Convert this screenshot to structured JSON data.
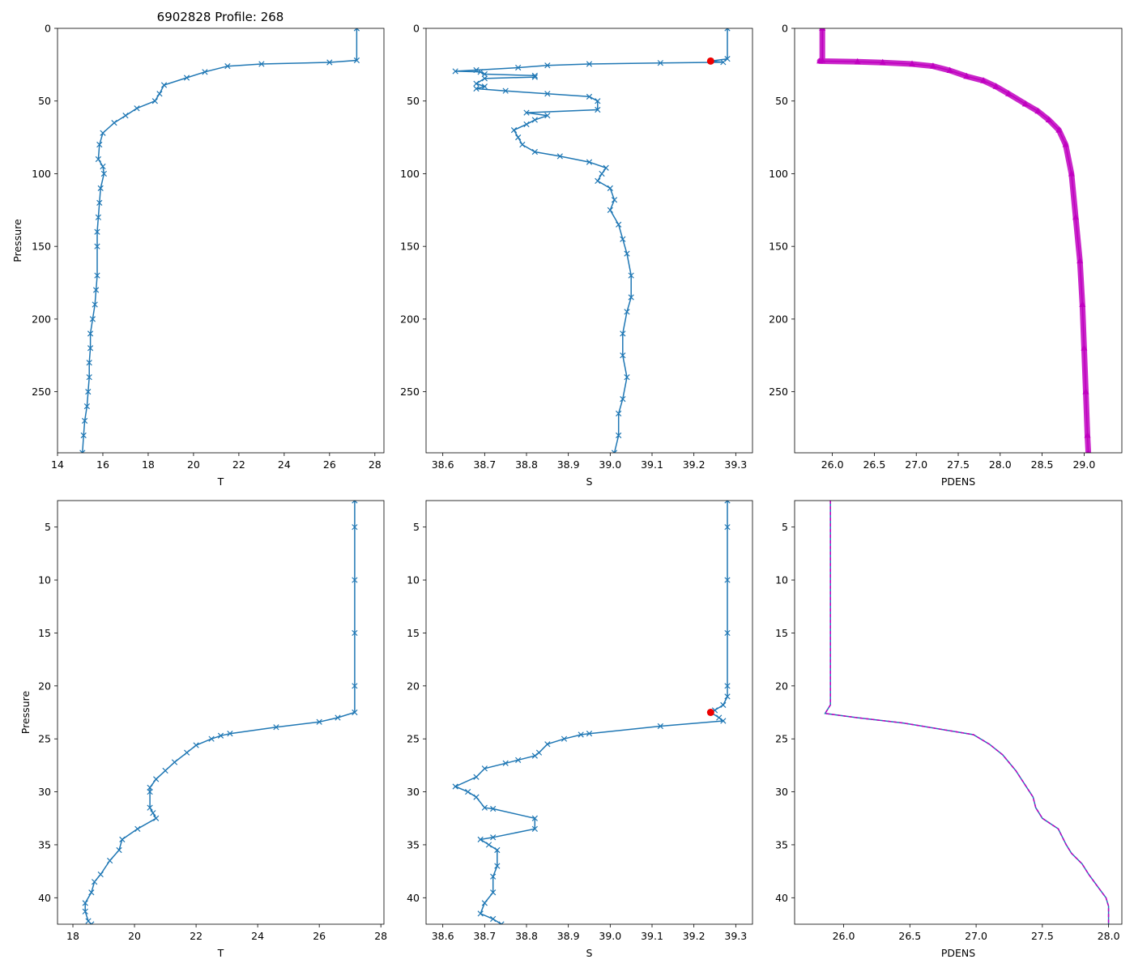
{
  "figure_title": "6902828 Profile: 268",
  "colors": {
    "blue": "#1f77b4",
    "magenta": "#c000c0",
    "red": "#ee0000",
    "dash": "#d62728"
  },
  "chart_data": [
    {
      "type": "line",
      "panel": "top-left",
      "xlabel": "T",
      "ylabel": "Pressure",
      "marker": "x",
      "xlim": [
        14,
        28.4
      ],
      "ylim": [
        292,
        0
      ],
      "xticks": [
        14,
        16,
        18,
        20,
        22,
        24,
        26,
        28
      ],
      "yticks": [
        0,
        50,
        100,
        150,
        200,
        250
      ],
      "series": [
        {
          "name": "T",
          "points": [
            [
              27.2,
              0
            ],
            [
              27.2,
              22
            ],
            [
              26,
              23.4
            ],
            [
              23,
              24.5
            ],
            [
              21.5,
              26
            ],
            [
              20.5,
              30
            ],
            [
              19.7,
              34
            ],
            [
              18.7,
              39
            ],
            [
              18.5,
              45
            ],
            [
              18.3,
              50
            ],
            [
              17.5,
              55
            ],
            [
              17,
              60
            ],
            [
              16.5,
              65
            ],
            [
              16,
              72
            ],
            [
              15.85,
              80
            ],
            [
              15.8,
              90
            ],
            [
              16,
              95
            ],
            [
              16.05,
              100
            ],
            [
              15.9,
              110
            ],
            [
              15.85,
              120
            ],
            [
              15.8,
              130
            ],
            [
              15.75,
              140
            ],
            [
              15.75,
              150
            ],
            [
              15.75,
              170
            ],
            [
              15.7,
              180
            ],
            [
              15.65,
              190
            ],
            [
              15.55,
              200
            ],
            [
              15.45,
              210
            ],
            [
              15.45,
              220
            ],
            [
              15.4,
              230
            ],
            [
              15.4,
              240
            ],
            [
              15.35,
              250
            ],
            [
              15.3,
              260
            ],
            [
              15.2,
              270
            ],
            [
              15.15,
              280
            ],
            [
              15.1,
              292
            ]
          ]
        }
      ]
    },
    {
      "type": "line",
      "panel": "top-middle",
      "xlabel": "S",
      "ylabel": "",
      "marker": "x",
      "xlim": [
        38.56,
        39.34
      ],
      "ylim": [
        292,
        0
      ],
      "xticks": [
        38.6,
        38.7,
        38.8,
        38.9,
        39.0,
        39.1,
        39.2,
        39.3
      ],
      "yticks": [
        0,
        50,
        100,
        150,
        200,
        250
      ],
      "highlight": {
        "x": 39.24,
        "y": 22.5
      },
      "series": [
        {
          "name": "S",
          "points": [
            [
              39.28,
              0
            ],
            [
              39.28,
              21
            ],
            [
              39.24,
              22.5
            ],
            [
              39.27,
              23.3
            ],
            [
              39.12,
              23.8
            ],
            [
              38.95,
              24.5
            ],
            [
              38.85,
              25.5
            ],
            [
              38.78,
              27
            ],
            [
              38.68,
              28.7
            ],
            [
              38.63,
              29.5
            ],
            [
              38.69,
              30
            ],
            [
              38.7,
              31.5
            ],
            [
              38.82,
              32.5
            ],
            [
              38.82,
              33.5
            ],
            [
              38.7,
              34.5
            ],
            [
              38.68,
              38
            ],
            [
              38.7,
              40
            ],
            [
              38.68,
              41.5
            ],
            [
              38.75,
              43
            ],
            [
              38.85,
              45
            ],
            [
              38.95,
              47
            ],
            [
              38.97,
              50
            ],
            [
              38.97,
              56
            ],
            [
              38.8,
              58
            ],
            [
              38.85,
              60
            ],
            [
              38.82,
              63
            ],
            [
              38.8,
              66
            ],
            [
              38.77,
              70
            ],
            [
              38.78,
              75
            ],
            [
              38.79,
              80
            ],
            [
              38.82,
              85
            ],
            [
              38.88,
              88
            ],
            [
              38.95,
              92
            ],
            [
              38.99,
              96
            ],
            [
              38.98,
              100
            ],
            [
              38.97,
              105
            ],
            [
              39,
              110
            ],
            [
              39.01,
              118
            ],
            [
              39.0,
              125
            ],
            [
              39.02,
              135
            ],
            [
              39.03,
              145
            ],
            [
              39.04,
              155
            ],
            [
              39.05,
              170
            ],
            [
              39.05,
              185
            ],
            [
              39.04,
              195
            ],
            [
              39.03,
              210
            ],
            [
              39.03,
              225
            ],
            [
              39.04,
              240
            ],
            [
              39.03,
              255
            ],
            [
              39.02,
              265
            ],
            [
              39.02,
              280
            ],
            [
              39.01,
              292
            ]
          ]
        }
      ]
    },
    {
      "type": "line",
      "panel": "top-right",
      "xlabel": "PDENS",
      "ylabel": "",
      "marker": "^",
      "xlim": [
        25.55,
        29.45
      ],
      "ylim": [
        292,
        0
      ],
      "xticks": [
        26.0,
        26.5,
        27.0,
        27.5,
        28.0,
        28.5,
        29.0
      ],
      "yticks": [
        0,
        50,
        100,
        150,
        200,
        250
      ],
      "series": [
        {
          "name": "PDENS",
          "points": [
            [
              25.88,
              0
            ],
            [
              25.88,
              22
            ],
            [
              25.85,
              22.5
            ],
            [
              26.3,
              23
            ],
            [
              26.6,
              23.5
            ],
            [
              26.95,
              24.5
            ],
            [
              27.2,
              26
            ],
            [
              27.4,
              29
            ],
            [
              27.6,
              33
            ],
            [
              27.8,
              36
            ],
            [
              27.95,
              40
            ],
            [
              28.1,
              45
            ],
            [
              28.3,
              52
            ],
            [
              28.45,
              57
            ],
            [
              28.58,
              63
            ],
            [
              28.7,
              70
            ],
            [
              28.78,
              80
            ],
            [
              28.85,
              100
            ],
            [
              28.9,
              130
            ],
            [
              28.95,
              160
            ],
            [
              28.98,
              190
            ],
            [
              29.0,
              220
            ],
            [
              29.02,
              250
            ],
            [
              29.04,
              280
            ],
            [
              29.05,
              292
            ]
          ]
        }
      ]
    },
    {
      "type": "line",
      "panel": "bottom-left",
      "xlabel": "T",
      "ylabel": "Pressure",
      "marker": "x",
      "xlim": [
        17.5,
        28.1
      ],
      "ylim": [
        42.5,
        2.5
      ],
      "xticks": [
        18,
        20,
        22,
        24,
        26,
        28
      ],
      "yticks": [
        5,
        10,
        15,
        20,
        25,
        30,
        35,
        40
      ],
      "series": [
        {
          "name": "T",
          "points": [
            [
              27.15,
              2.5
            ],
            [
              27.15,
              5
            ],
            [
              27.15,
              10
            ],
            [
              27.15,
              15
            ],
            [
              27.15,
              20
            ],
            [
              27.15,
              22.5
            ],
            [
              26.6,
              23
            ],
            [
              26,
              23.4
            ],
            [
              24.6,
              23.9
            ],
            [
              23.1,
              24.5
            ],
            [
              22.8,
              24.7
            ],
            [
              22.5,
              25
            ],
            [
              22,
              25.6
            ],
            [
              21.7,
              26.3
            ],
            [
              21.3,
              27.2
            ],
            [
              21,
              28
            ],
            [
              20.7,
              28.8
            ],
            [
              20.5,
              29.6
            ],
            [
              20.5,
              30
            ],
            [
              20.5,
              31.5
            ],
            [
              20.6,
              32
            ],
            [
              20.7,
              32.5
            ],
            [
              20.1,
              33.5
            ],
            [
              19.6,
              34.5
            ],
            [
              19.5,
              35.5
            ],
            [
              19.2,
              36.5
            ],
            [
              18.9,
              37.8
            ],
            [
              18.7,
              38.5
            ],
            [
              18.6,
              39.5
            ],
            [
              18.4,
              40.5
            ],
            [
              18.4,
              41.3
            ],
            [
              18.5,
              42.2
            ],
            [
              18.6,
              42.5
            ]
          ]
        }
      ]
    },
    {
      "type": "line",
      "panel": "bottom-middle",
      "xlabel": "S",
      "ylabel": "",
      "marker": "x",
      "xlim": [
        38.56,
        39.34
      ],
      "ylim": [
        42.5,
        2.5
      ],
      "xticks": [
        38.6,
        38.7,
        38.8,
        38.9,
        39.0,
        39.1,
        39.2,
        39.3
      ],
      "yticks": [
        5,
        10,
        15,
        20,
        25,
        30,
        35,
        40
      ],
      "highlight": {
        "x": 39.24,
        "y": 22.5
      },
      "series": [
        {
          "name": "S",
          "points": [
            [
              39.28,
              2.5
            ],
            [
              39.28,
              5
            ],
            [
              39.28,
              10
            ],
            [
              39.28,
              15
            ],
            [
              39.28,
              20
            ],
            [
              39.28,
              21
            ],
            [
              39.27,
              21.8
            ],
            [
              39.25,
              22.3
            ],
            [
              39.24,
              22.5
            ],
            [
              39.26,
              23
            ],
            [
              39.27,
              23.3
            ],
            [
              39.12,
              23.8
            ],
            [
              38.95,
              24.5
            ],
            [
              38.93,
              24.6
            ],
            [
              38.89,
              25
            ],
            [
              38.85,
              25.5
            ],
            [
              38.83,
              26.3
            ],
            [
              38.82,
              26.6
            ],
            [
              38.78,
              27
            ],
            [
              38.75,
              27.3
            ],
            [
              38.7,
              27.8
            ],
            [
              38.68,
              28.6
            ],
            [
              38.63,
              29.5
            ],
            [
              38.66,
              30
            ],
            [
              38.68,
              30.5
            ],
            [
              38.7,
              31.5
            ],
            [
              38.72,
              31.6
            ],
            [
              38.82,
              32.5
            ],
            [
              38.82,
              33.5
            ],
            [
              38.72,
              34.3
            ],
            [
              38.69,
              34.5
            ],
            [
              38.71,
              35
            ],
            [
              38.73,
              35.5
            ],
            [
              38.73,
              37
            ],
            [
              38.72,
              38
            ],
            [
              38.72,
              39.5
            ],
            [
              38.7,
              40.5
            ],
            [
              38.69,
              41.5
            ],
            [
              38.72,
              42
            ],
            [
              38.74,
              42.5
            ]
          ]
        }
      ]
    },
    {
      "type": "line",
      "panel": "bottom-right",
      "xlabel": "PDENS",
      "ylabel": "",
      "marker": "none",
      "xlim": [
        25.63,
        28.1
      ],
      "ylim": [
        42.5,
        2.5
      ],
      "xticks": [
        26.0,
        26.5,
        27.0,
        27.5,
        28.0
      ],
      "yticks": [
        5,
        10,
        15,
        20,
        25,
        30,
        35,
        40
      ],
      "series": [
        {
          "name": "PDENS",
          "points": [
            [
              25.9,
              2.5
            ],
            [
              25.9,
              10
            ],
            [
              25.9,
              21.8
            ],
            [
              25.86,
              22.6
            ],
            [
              26.1,
              23
            ],
            [
              26.45,
              23.5
            ],
            [
              26.98,
              24.6
            ],
            [
              27.1,
              25.5
            ],
            [
              27.2,
              26.5
            ],
            [
              27.3,
              28
            ],
            [
              27.43,
              30.5
            ],
            [
              27.45,
              31.5
            ],
            [
              27.5,
              32.5
            ],
            [
              27.62,
              33.5
            ],
            [
              27.68,
              35
            ],
            [
              27.72,
              35.8
            ],
            [
              27.8,
              36.8
            ],
            [
              27.85,
              37.8
            ],
            [
              27.92,
              39
            ],
            [
              27.98,
              40
            ],
            [
              28.0,
              40.8
            ],
            [
              28.0,
              42.5
            ]
          ]
        }
      ]
    }
  ]
}
